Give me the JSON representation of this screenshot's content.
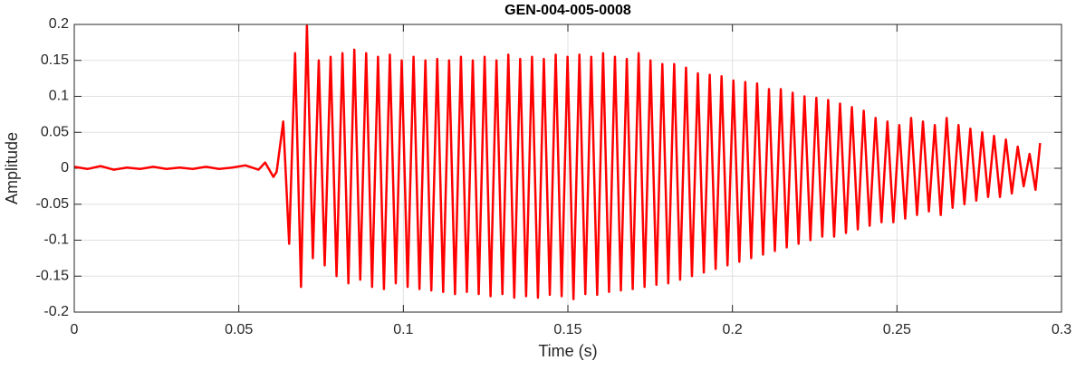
{
  "chart_data": {
    "type": "line",
    "title": "GEN-004-005-0008",
    "x_label": "Time (s)",
    "y_label": "Amplitude",
    "xlim": [
      0,
      0.3
    ],
    "ylim": [
      -0.2,
      0.2
    ],
    "xticks": [
      0,
      0.05,
      0.1,
      0.15,
      0.2,
      0.25,
      0.3
    ],
    "yticks": [
      -0.2,
      -0.15,
      -0.1,
      -0.05,
      0,
      0.05,
      0.1,
      0.15,
      0.2
    ],
    "grid": true,
    "series": [
      {
        "color": "#ff0000",
        "x": [
          0,
          0.004,
          0.008,
          0.012,
          0.016,
          0.02,
          0.024,
          0.028,
          0.032,
          0.036,
          0.04,
          0.044,
          0.048,
          0.052,
          0.056,
          0.058,
          0.0605,
          0.0615,
          0.0635,
          0.0653,
          0.0671,
          0.0689,
          0.0707,
          0.0725,
          0.0743,
          0.0761,
          0.0779,
          0.0797,
          0.0815,
          0.0833,
          0.0851,
          0.0869,
          0.0887,
          0.0905,
          0.0923,
          0.0941,
          0.0959,
          0.0977,
          0.0995,
          0.1013,
          0.1031,
          0.1049,
          0.1067,
          0.1085,
          0.1103,
          0.1121,
          0.1139,
          0.1157,
          0.1175,
          0.1193,
          0.1211,
          0.1229,
          0.1247,
          0.1265,
          0.1283,
          0.1301,
          0.1319,
          0.1337,
          0.1355,
          0.1373,
          0.1391,
          0.1409,
          0.1427,
          0.1445,
          0.1463,
          0.1481,
          0.1499,
          0.1517,
          0.1535,
          0.1553,
          0.1571,
          0.1589,
          0.1607,
          0.1625,
          0.1643,
          0.1661,
          0.1679,
          0.1697,
          0.1715,
          0.1733,
          0.1751,
          0.1769,
          0.1787,
          0.1805,
          0.1823,
          0.1841,
          0.1859,
          0.1877,
          0.1895,
          0.1913,
          0.1931,
          0.1949,
          0.1967,
          0.1985,
          0.2003,
          0.2021,
          0.2039,
          0.2057,
          0.2075,
          0.2093,
          0.2111,
          0.2129,
          0.2147,
          0.2165,
          0.2183,
          0.2201,
          0.2219,
          0.2237,
          0.2255,
          0.2273,
          0.2291,
          0.2309,
          0.2327,
          0.2345,
          0.2363,
          0.2381,
          0.2399,
          0.2417,
          0.2435,
          0.2453,
          0.2471,
          0.2489,
          0.2507,
          0.2525,
          0.2543,
          0.2561,
          0.2579,
          0.2597,
          0.2615,
          0.2633,
          0.2651,
          0.2669,
          0.2687,
          0.2705,
          0.2723,
          0.2741,
          0.2759,
          0.2777,
          0.2795,
          0.2813,
          0.2831,
          0.2849,
          0.2867,
          0.2885,
          0.2903,
          0.2921,
          0.2935
        ],
        "values": [
          0.002,
          -0.001,
          0.003,
          -0.002,
          0.001,
          -0.001,
          0.002,
          -0.001,
          0.001,
          -0.001,
          0.002,
          -0.001,
          0.001,
          0.004,
          -0.002,
          0.008,
          -0.012,
          -0.005,
          0.065,
          -0.105,
          0.16,
          -0.165,
          0.198,
          -0.125,
          0.15,
          -0.135,
          0.155,
          -0.15,
          0.16,
          -0.16,
          0.165,
          -0.155,
          0.16,
          -0.165,
          0.155,
          -0.168,
          0.158,
          -0.16,
          0.15,
          -0.165,
          0.155,
          -0.168,
          0.15,
          -0.17,
          0.152,
          -0.172,
          0.15,
          -0.175,
          0.155,
          -0.172,
          0.15,
          -0.175,
          0.155,
          -0.178,
          0.15,
          -0.175,
          0.158,
          -0.18,
          0.152,
          -0.178,
          0.155,
          -0.18,
          0.152,
          -0.176,
          0.158,
          -0.178,
          0.155,
          -0.182,
          0.158,
          -0.175,
          0.155,
          -0.176,
          0.16,
          -0.172,
          0.155,
          -0.17,
          0.152,
          -0.168,
          0.16,
          -0.165,
          0.15,
          -0.162,
          0.145,
          -0.16,
          0.145,
          -0.155,
          0.14,
          -0.15,
          0.132,
          -0.145,
          0.13,
          -0.14,
          0.128,
          -0.135,
          0.122,
          -0.13,
          0.12,
          -0.125,
          0.118,
          -0.12,
          0.11,
          -0.115,
          0.11,
          -0.11,
          0.105,
          -0.105,
          0.1,
          -0.1,
          0.098,
          -0.095,
          0.095,
          -0.095,
          0.09,
          -0.09,
          0.085,
          -0.085,
          0.08,
          -0.08,
          0.07,
          -0.075,
          0.065,
          -0.075,
          0.06,
          -0.07,
          0.07,
          -0.065,
          0.065,
          -0.06,
          0.06,
          -0.065,
          0.07,
          -0.055,
          0.06,
          -0.05,
          0.055,
          -0.045,
          0.05,
          -0.04,
          0.045,
          -0.04,
          0.04,
          -0.035,
          0.03,
          -0.025,
          0.02,
          -0.03,
          0.035
        ]
      }
    ]
  }
}
